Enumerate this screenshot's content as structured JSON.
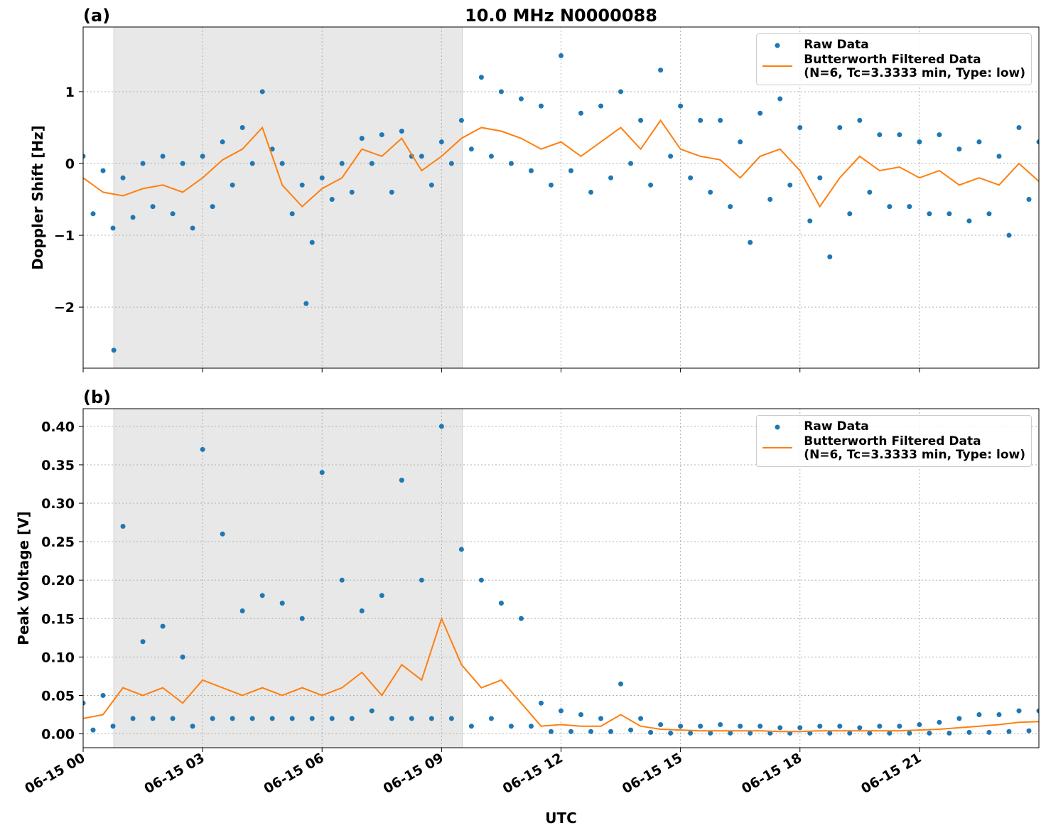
{
  "chart_data": [
    {
      "type": "scatter-line",
      "title": "10.0 MHz N0000088",
      "panel_label": "(a)",
      "ylabel": "Doppler Shift [Hz]",
      "xlim": [
        0,
        24
      ],
      "xticks": [
        0,
        3,
        6,
        9,
        12,
        15,
        18,
        21
      ],
      "show_xtick_labels": false,
      "ylim": [
        -2.85,
        1.9
      ],
      "yticks": [
        {
          "value": -2,
          "label": "−2"
        },
        {
          "value": -1,
          "label": "−1"
        },
        0,
        1
      ],
      "grid": true,
      "shaded_span": [
        0.77,
        9.52
      ],
      "legend": "upper right",
      "series": [
        {
          "name": "Raw Data",
          "color": "#1f77b4",
          "style": "dots",
          "x": [
            0,
            0.25,
            0.5,
            0.75,
            1,
            1.25,
            1.5,
            1.75,
            2,
            2.25,
            2.5,
            2.75,
            3,
            3.25,
            3.5,
            3.75,
            4,
            4.25,
            4.5,
            4.75,
            5,
            5.25,
            5.5,
            5.75,
            6,
            6.25,
            6.5,
            6.75,
            7,
            7.25,
            7.5,
            7.75,
            8,
            8.25,
            8.5,
            8.75,
            9,
            9.25,
            9.5,
            9.75,
            10,
            10.25,
            10.5,
            10.75,
            11,
            11.25,
            11.5,
            11.75,
            12,
            12.25,
            12.5,
            12.75,
            13,
            13.25,
            13.5,
            13.75,
            14,
            14.25,
            14.5,
            14.75,
            15,
            15.25,
            15.5,
            15.75,
            16,
            16.25,
            16.5,
            16.75,
            17,
            17.25,
            17.5,
            17.75,
            18,
            18.25,
            18.5,
            18.75,
            19,
            19.25,
            19.5,
            19.75,
            20,
            20.25,
            20.5,
            20.75,
            21,
            21.25,
            21.5,
            21.75,
            22,
            22.25,
            22.5,
            22.75,
            23,
            23.25,
            23.5,
            23.75,
            24,
            0.77,
            5.6
          ],
          "values": [
            0.1,
            -0.7,
            -0.1,
            -0.9,
            -0.2,
            -0.75,
            0.0,
            -0.6,
            0.1,
            -0.7,
            0.0,
            -0.9,
            0.1,
            -0.6,
            0.3,
            -0.3,
            0.5,
            0.0,
            1.0,
            0.2,
            0.0,
            -0.7,
            -0.3,
            -1.1,
            -0.2,
            -0.5,
            0.0,
            -0.4,
            0.35,
            0.0,
            0.4,
            -0.4,
            0.45,
            0.1,
            0.1,
            -0.3,
            0.3,
            0.0,
            0.6,
            0.2,
            1.2,
            0.1,
            1.0,
            0.0,
            0.9,
            -0.1,
            0.8,
            -0.3,
            1.5,
            -0.1,
            0.7,
            -0.4,
            0.8,
            -0.2,
            1.0,
            0.0,
            0.6,
            -0.3,
            1.3,
            0.1,
            0.8,
            -0.2,
            0.6,
            -0.4,
            0.6,
            -0.6,
            0.3,
            -1.1,
            0.7,
            -0.5,
            0.9,
            -0.3,
            0.5,
            -0.8,
            -0.2,
            -1.3,
            0.5,
            -0.7,
            0.6,
            -0.4,
            0.4,
            -0.6,
            0.4,
            -0.6,
            0.3,
            -0.7,
            0.4,
            -0.7,
            0.2,
            -0.8,
            0.3,
            -0.7,
            0.1,
            -1.0,
            0.5,
            -0.5,
            0.3,
            -2.6,
            -1.95
          ]
        },
        {
          "name": "Butterworth Filtered Data\n(N=6, Tc=3.3333 min, Type: low)",
          "color": "#ff7f0e",
          "style": "line",
          "x": [
            0,
            0.5,
            1,
            1.5,
            2,
            2.5,
            3,
            3.5,
            4,
            4.5,
            5,
            5.5,
            6,
            6.5,
            7,
            7.5,
            8,
            8.5,
            9,
            9.5,
            10,
            10.5,
            11,
            11.5,
            12,
            12.5,
            13,
            13.5,
            14,
            14.5,
            15,
            15.5,
            16,
            16.5,
            17,
            17.5,
            18,
            18.5,
            19,
            19.5,
            20,
            20.5,
            21,
            21.5,
            22,
            22.5,
            23,
            23.5,
            24
          ],
          "values": [
            -0.2,
            -0.4,
            -0.45,
            -0.35,
            -0.3,
            -0.4,
            -0.2,
            0.05,
            0.2,
            0.5,
            -0.3,
            -0.6,
            -0.35,
            -0.2,
            0.2,
            0.1,
            0.35,
            -0.1,
            0.1,
            0.35,
            0.5,
            0.45,
            0.35,
            0.2,
            0.3,
            0.1,
            0.3,
            0.5,
            0.2,
            0.6,
            0.2,
            0.1,
            0.05,
            -0.2,
            0.1,
            0.2,
            -0.1,
            -0.6,
            -0.2,
            0.1,
            -0.1,
            -0.05,
            -0.2,
            -0.1,
            -0.3,
            -0.2,
            -0.3,
            0.0,
            -0.25
          ]
        }
      ]
    },
    {
      "type": "scatter-line",
      "panel_label": "(b)",
      "ylabel": "Peak Voltage [V]",
      "xlabel": "UTC",
      "xlim": [
        0,
        24
      ],
      "xticks": [
        {
          "value": 0,
          "label": "06-15 00"
        },
        {
          "value": 3,
          "label": "06-15 03"
        },
        {
          "value": 6,
          "label": "06-15 06"
        },
        {
          "value": 9,
          "label": "06-15 09"
        },
        {
          "value": 12,
          "label": "06-15 12"
        },
        {
          "value": 15,
          "label": "06-15 15"
        },
        {
          "value": 18,
          "label": "06-15 18"
        },
        {
          "value": 21,
          "label": "06-15 21"
        }
      ],
      "show_xtick_labels": true,
      "ylim": [
        -0.018,
        0.423
      ],
      "yticks": [
        {
          "value": 0,
          "label": "0.00"
        },
        {
          "value": 0.05,
          "label": "0.05"
        },
        {
          "value": 0.1,
          "label": "0.10"
        },
        {
          "value": 0.15,
          "label": "0.15"
        },
        {
          "value": 0.2,
          "label": "0.20"
        },
        {
          "value": 0.25,
          "label": "0.25"
        },
        {
          "value": 0.3,
          "label": "0.30"
        },
        {
          "value": 0.35,
          "label": "0.35"
        },
        {
          "value": 0.4,
          "label": "0.40"
        }
      ],
      "grid": true,
      "shaded_span": [
        0.77,
        9.52
      ],
      "legend": "upper right",
      "series": [
        {
          "name": "Raw Data",
          "color": "#1f77b4",
          "style": "dots",
          "x": [
            0,
            0.25,
            0.5,
            0.75,
            1,
            1.25,
            1.5,
            1.75,
            2,
            2.25,
            2.5,
            2.75,
            3,
            3.25,
            3.5,
            3.75,
            4,
            4.25,
            4.5,
            4.75,
            5,
            5.25,
            5.5,
            5.75,
            6,
            6.25,
            6.5,
            6.75,
            7,
            7.25,
            7.5,
            7.75,
            8,
            8.25,
            8.5,
            8.75,
            9,
            9.25,
            9.5,
            9.75,
            10,
            10.25,
            10.5,
            10.75,
            11,
            11.25,
            11.5,
            11.75,
            12,
            12.25,
            12.5,
            12.75,
            13,
            13.25,
            13.5,
            13.75,
            14,
            14.25,
            14.5,
            14.75,
            15,
            15.25,
            15.5,
            15.75,
            16,
            16.25,
            16.5,
            16.75,
            17,
            17.25,
            17.5,
            17.75,
            18,
            18.25,
            18.5,
            18.75,
            19,
            19.25,
            19.5,
            19.75,
            20,
            20.25,
            20.5,
            20.75,
            21,
            21.25,
            21.5,
            21.75,
            22,
            22.25,
            22.5,
            22.75,
            23,
            23.25,
            23.5,
            23.75,
            24
          ],
          "values": [
            0.04,
            0.005,
            0.05,
            0.01,
            0.27,
            0.02,
            0.12,
            0.02,
            0.14,
            0.02,
            0.1,
            0.01,
            0.37,
            0.02,
            0.26,
            0.02,
            0.16,
            0.02,
            0.18,
            0.02,
            0.17,
            0.02,
            0.15,
            0.02,
            0.34,
            0.02,
            0.2,
            0.02,
            0.16,
            0.03,
            0.18,
            0.02,
            0.33,
            0.02,
            0.2,
            0.02,
            0.4,
            0.02,
            0.24,
            0.01,
            0.2,
            0.02,
            0.17,
            0.01,
            0.15,
            0.01,
            0.04,
            0.003,
            0.03,
            0.003,
            0.025,
            0.003,
            0.02,
            0.003,
            0.065,
            0.005,
            0.02,
            0.002,
            0.012,
            0.001,
            0.01,
            0.001,
            0.01,
            0.001,
            0.012,
            0.001,
            0.01,
            0.001,
            0.01,
            0.001,
            0.008,
            0.001,
            0.008,
            0.001,
            0.01,
            0.001,
            0.01,
            0.001,
            0.008,
            0.001,
            0.01,
            0.001,
            0.01,
            0.001,
            0.012,
            0.001,
            0.015,
            0.001,
            0.02,
            0.002,
            0.025,
            0.002,
            0.025,
            0.003,
            0.03,
            0.004,
            0.03
          ]
        },
        {
          "name": "Butterworth Filtered Data\n(N=6, Tc=3.3333 min, Type: low)",
          "color": "#ff7f0e",
          "style": "line",
          "x": [
            0,
            0.5,
            1,
            1.5,
            2,
            2.5,
            3,
            3.5,
            4,
            4.5,
            5,
            5.5,
            6,
            6.5,
            7,
            7.5,
            8,
            8.5,
            9,
            9.5,
            10,
            10.5,
            11,
            11.5,
            12,
            12.5,
            13,
            13.5,
            14,
            14.5,
            15,
            15.5,
            16,
            16.5,
            17,
            17.5,
            18,
            18.5,
            19,
            19.5,
            20,
            20.5,
            21,
            21.5,
            22,
            22.5,
            23,
            23.5,
            24
          ],
          "values": [
            0.02,
            0.025,
            0.06,
            0.05,
            0.06,
            0.04,
            0.07,
            0.06,
            0.05,
            0.06,
            0.05,
            0.06,
            0.05,
            0.06,
            0.08,
            0.05,
            0.09,
            0.07,
            0.15,
            0.09,
            0.06,
            0.07,
            0.04,
            0.01,
            0.012,
            0.01,
            0.01,
            0.025,
            0.01,
            0.006,
            0.005,
            0.004,
            0.004,
            0.004,
            0.004,
            0.003,
            0.003,
            0.004,
            0.004,
            0.004,
            0.004,
            0.004,
            0.005,
            0.006,
            0.008,
            0.01,
            0.012,
            0.015,
            0.016
          ]
        }
      ]
    }
  ]
}
